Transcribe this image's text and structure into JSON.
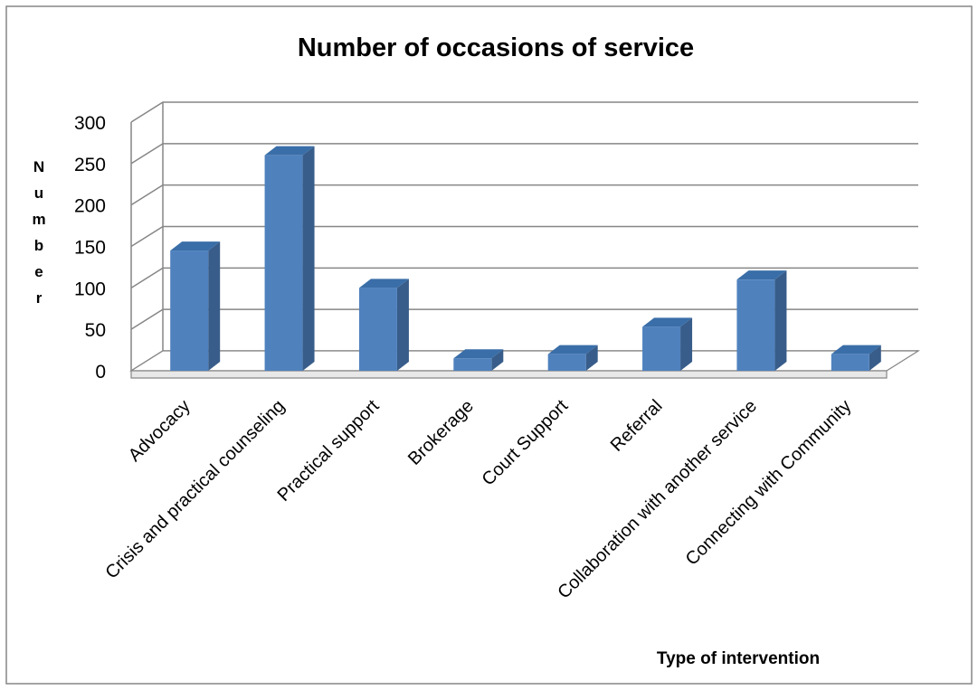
{
  "chart_data": {
    "type": "bar",
    "title": "Number of occasions of service",
    "xlabel": "Type of intervention",
    "ylabel": "Number",
    "categories": [
      "Advocacy",
      "Crisis and practical counseling",
      "Practical support",
      "Brokerage",
      "Court Support",
      "Referral",
      "Collaboration with another service",
      "Connecting with Community"
    ],
    "values": [
      145,
      260,
      100,
      15,
      20,
      53,
      110,
      20
    ],
    "ylim": [
      0,
      300
    ],
    "yticks": [
      "0",
      "50",
      "100",
      "150",
      "200",
      "250",
      "300"
    ],
    "grid": true,
    "legend": "none",
    "bar_color": "#4F81BD",
    "bar_side_color": "#385D8A",
    "bar_top_color": "#3A6EA8"
  }
}
